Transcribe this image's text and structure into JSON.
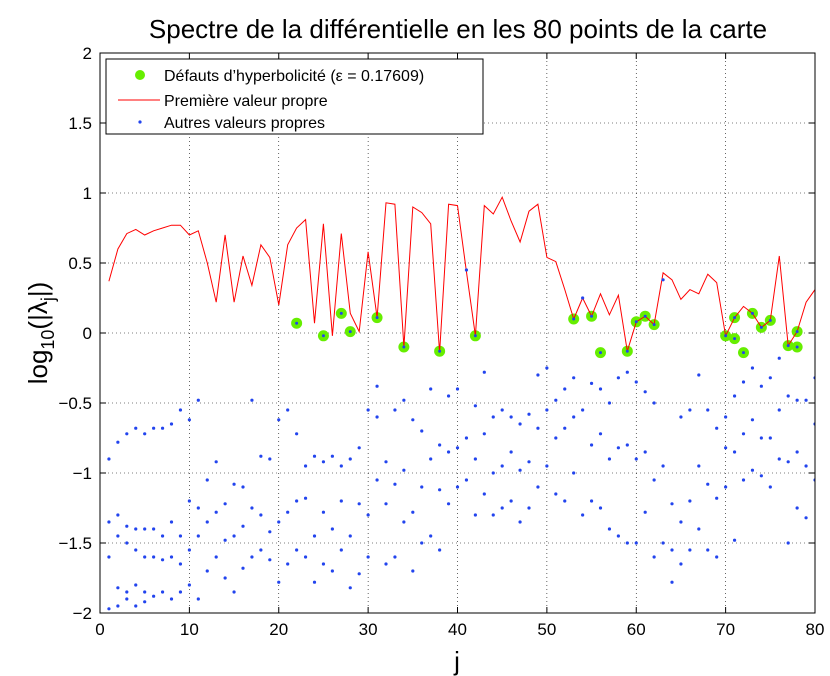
{
  "chart_data": {
    "type": "scatter",
    "title": "Spectre de la différentielle en les 80 points de la carte",
    "xlabel": "j",
    "ylabel_main": "log",
    "ylabel_sub": "10",
    "ylabel_rest": "(|λ",
    "ylabel_sub2": "j",
    "ylabel_end": "|)",
    "xlim": [
      0,
      80
    ],
    "ylim": [
      -2,
      2
    ],
    "xticks": [
      0,
      10,
      20,
      30,
      40,
      50,
      60,
      70,
      80
    ],
    "xtick_labels": [
      "0",
      "10",
      "20",
      "30",
      "40",
      "50",
      "60",
      "70",
      "80"
    ],
    "yticks": [
      -2,
      -1.5,
      -1,
      -0.5,
      0,
      0.5,
      1,
      1.5,
      2
    ],
    "ytick_labels": [
      "−2",
      "−1.5",
      "−1",
      "−0.5",
      "0",
      "0.5",
      "1",
      "1.5",
      "2"
    ],
    "grid": "dotted",
    "legend_position": "top-left",
    "colors": {
      "defects": "#66ee00",
      "first": "#ff0000",
      "others": "#2244ee"
    },
    "legend": [
      "Défauts d’hyperbolicité (ε = 0.17609)",
      "Première valeur propre",
      "Autres valeurs propres"
    ],
    "first_eigenvalue": {
      "x": [
        1,
        2,
        3,
        4,
        5,
        6,
        7,
        8,
        9,
        10,
        11,
        12,
        13,
        14,
        15,
        16,
        17,
        18,
        19,
        20,
        21,
        22,
        23,
        24,
        25,
        26,
        27,
        28,
        29,
        30,
        31,
        32,
        33,
        34,
        35,
        36,
        37,
        38,
        39,
        40,
        41,
        42,
        43,
        44,
        45,
        46,
        47,
        48,
        49,
        50,
        51,
        52,
        53,
        54,
        55,
        56,
        57,
        58,
        59,
        60,
        61,
        62,
        63,
        64,
        65,
        66,
        67,
        68,
        69,
        70,
        71,
        72,
        73,
        74,
        75,
        76,
        77,
        78,
        79,
        80
      ],
      "y": [
        0.37,
        0.6,
        0.71,
        0.74,
        0.7,
        0.73,
        0.75,
        0.77,
        0.77,
        0.7,
        0.73,
        0.5,
        0.22,
        0.7,
        0.22,
        0.55,
        0.34,
        0.63,
        0.54,
        0.2,
        0.63,
        0.75,
        0.81,
        0.07,
        0.78,
        -0.02,
        0.71,
        0.14,
        0.01,
        0.58,
        0.11,
        0.93,
        0.92,
        -0.1,
        0.9,
        0.86,
        0.78,
        -0.14,
        0.92,
        0.91,
        0.44,
        -0.02,
        0.91,
        0.85,
        0.97,
        0.8,
        0.65,
        0.87,
        0.92,
        0.54,
        0.51,
        0.31,
        0.1,
        0.25,
        0.12,
        0.28,
        0.13,
        0.27,
        -0.13,
        0.08,
        0.12,
        0.06,
        0.43,
        0.38,
        0.24,
        0.31,
        0.28,
        0.42,
        0.36,
        -0.02,
        0.11,
        0.19,
        0.14,
        0.04,
        0.09,
        0.55,
        -0.09,
        0.01,
        0.22,
        0.31
      ]
    },
    "defects": {
      "x": [
        22,
        25,
        27,
        28,
        31,
        34,
        38,
        42,
        53,
        55,
        56,
        59,
        60,
        61,
        62,
        70,
        71,
        71,
        72,
        73,
        74,
        75,
        77,
        78,
        78
      ],
      "y": [
        0.07,
        -0.02,
        0.14,
        0.01,
        0.11,
        -0.1,
        -0.13,
        -0.02,
        0.1,
        0.12,
        -0.14,
        -0.13,
        0.08,
        0.12,
        0.06,
        -0.02,
        0.11,
        -0.04,
        -0.14,
        0.14,
        0.04,
        0.09,
        -0.09,
        -0.1,
        0.01
      ]
    },
    "other_eigenvalues": {
      "x": [
        1,
        1,
        1,
        1,
        2,
        2,
        2,
        2,
        2,
        3,
        3,
        3,
        3,
        3,
        4,
        4,
        4,
        4,
        4,
        5,
        5,
        5,
        5,
        5,
        6,
        6,
        6,
        6,
        7,
        7,
        7,
        7,
        8,
        8,
        8,
        8,
        9,
        9,
        9,
        9,
        10,
        10,
        10,
        10,
        11,
        11,
        11,
        11,
        12,
        12,
        12,
        13,
        13,
        13,
        14,
        14,
        14,
        15,
        15,
        15,
        16,
        16,
        16,
        17,
        17,
        17,
        18,
        18,
        18,
        19,
        19,
        19,
        20,
        20,
        20,
        21,
        21,
        21,
        22,
        22,
        22,
        23,
        23,
        23,
        24,
        24,
        24,
        25,
        25,
        25,
        26,
        26,
        26,
        27,
        27,
        27,
        28,
        28,
        28,
        29,
        29,
        29,
        30,
        30,
        30,
        31,
        31,
        31,
        32,
        32,
        32,
        33,
        33,
        33,
        34,
        34,
        34,
        35,
        35,
        35,
        36,
        36,
        36,
        37,
        37,
        37,
        38,
        38,
        38,
        39,
        39,
        39,
        40,
        40,
        40,
        41,
        41,
        41,
        42,
        42,
        42,
        43,
        43,
        43,
        44,
        44,
        44,
        45,
        45,
        45,
        46,
        46,
        46,
        47,
        47,
        47,
        48,
        48,
        48,
        49,
        49,
        49,
        50,
        50,
        50,
        51,
        51,
        51,
        52,
        52,
        52,
        53,
        53,
        53,
        54,
        54,
        54,
        55,
        55,
        55,
        56,
        56,
        56,
        57,
        57,
        57,
        58,
        58,
        58,
        59,
        59,
        59,
        60,
        60,
        60,
        61,
        61,
        61,
        62,
        62,
        62,
        63,
        63,
        63,
        64,
        64,
        64,
        65,
        65,
        65,
        66,
        66,
        66,
        67,
        67,
        67,
        68,
        68,
        68,
        69,
        69,
        69,
        70,
        70,
        70,
        71,
        71,
        71,
        72,
        72,
        72,
        73,
        73,
        73,
        74,
        74,
        74,
        75,
        75,
        75,
        76,
        76,
        76,
        77,
        77,
        77,
        78,
        78,
        78,
        79,
        79,
        79,
        80,
        80,
        80
      ],
      "y": [
        -0.9,
        -1.35,
        -1.6,
        -1.97,
        -0.78,
        -1.3,
        -1.45,
        -1.82,
        -1.95,
        -0.72,
        -1.38,
        -1.5,
        -1.85,
        -1.9,
        -0.68,
        -1.4,
        -1.55,
        -1.8,
        -1.95,
        -0.72,
        -1.4,
        -1.6,
        -1.85,
        -1.92,
        -0.68,
        -1.4,
        -1.6,
        -1.88,
        -0.68,
        -1.45,
        -1.62,
        -1.85,
        -0.65,
        -1.35,
        -1.6,
        -1.9,
        -0.55,
        -1.45,
        -1.65,
        -1.85,
        -0.62,
        -1.2,
        -1.55,
        -1.8,
        -0.48,
        -1.25,
        -1.45,
        -1.9,
        -1.05,
        -1.35,
        -1.7,
        -0.92,
        -1.28,
        -1.6,
        -1.22,
        -1.48,
        -1.75,
        -1.08,
        -1.45,
        -1.85,
        -1.1,
        -1.38,
        -1.68,
        -0.48,
        -1.25,
        -1.6,
        -0.88,
        -1.3,
        -1.55,
        -0.9,
        -1.42,
        -1.62,
        -0.62,
        -1.35,
        -1.78,
        -0.55,
        -1.28,
        -1.65,
        -0.72,
        -1.2,
        -1.55,
        -0.95,
        -1.18,
        -1.6,
        -0.88,
        -1.45,
        -1.78,
        -0.92,
        -1.28,
        -1.65,
        -0.88,
        -1.4,
        -1.7,
        -0.95,
        -1.2,
        -1.55,
        -0.9,
        -1.45,
        -1.82,
        -0.82,
        -1.22,
        -1.72,
        -0.55,
        -1.3,
        -1.6,
        -0.38,
        -0.6,
        -1.05,
        -0.92,
        -1.22,
        -1.65,
        -0.55,
        -1.08,
        -1.6,
        -0.48,
        -0.98,
        -1.35,
        -0.62,
        -1.28,
        -1.7,
        -0.7,
        -1.1,
        -1.5,
        -0.4,
        -0.9,
        -1.45,
        -0.8,
        -1.12,
        -1.55,
        -0.45,
        -0.85,
        -1.22,
        -0.4,
        -0.82,
        -1.1,
        0.45,
        -0.75,
        -1.05,
        -0.52,
        -0.9,
        -1.3,
        -0.28,
        -0.72,
        -1.15,
        -0.6,
        -1.0,
        -1.3,
        -0.55,
        -0.95,
        -1.25,
        -0.6,
        -0.85,
        -1.2,
        -0.65,
        -0.98,
        -1.35,
        -0.58,
        -0.92,
        -1.25,
        -0.3,
        -0.68,
        -1.1,
        -0.25,
        -0.55,
        -0.95,
        -0.48,
        -0.75,
        -1.15,
        -0.4,
        -0.68,
        -1.2,
        -0.32,
        -0.6,
        -1.0,
        0.25,
        -0.55,
        -1.3,
        -0.36,
        -0.8,
        -1.2,
        -0.4,
        -0.72,
        -1.25,
        -0.5,
        -0.9,
        -1.4,
        -0.32,
        -0.82,
        -1.45,
        -0.28,
        -0.8,
        -1.5,
        -0.35,
        -0.9,
        -1.5,
        -0.42,
        -0.85,
        -1.28,
        -0.5,
        -1.05,
        -1.6,
        0.38,
        -0.95,
        -1.5,
        -1.22,
        -1.55,
        -1.78,
        -0.6,
        -1.35,
        -1.65,
        -0.55,
        -1.2,
        -1.55,
        -0.3,
        -0.95,
        -1.4,
        -0.55,
        -1.08,
        -1.55,
        -0.68,
        -1.18,
        -1.6,
        -0.6,
        -0.82,
        -1.1,
        -0.45,
        -0.85,
        -1.48,
        -0.35,
        -0.72,
        -1.05,
        -0.25,
        -0.62,
        -0.98,
        -0.38,
        -0.75,
        -1.02,
        -0.32,
        -0.75,
        -1.1,
        -0.18,
        -0.55,
        -0.9,
        -0.45,
        -0.92,
        -1.5,
        -0.48,
        -0.85,
        -1.25,
        -0.48,
        -0.95,
        -1.32,
        -0.32,
        -0.65,
        -1.05
      ]
    }
  }
}
